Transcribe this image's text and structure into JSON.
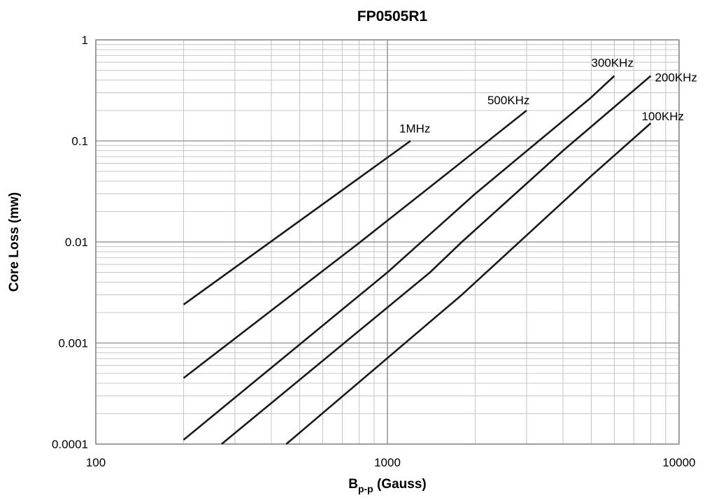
{
  "chart_data": {
    "type": "line",
    "title": "FP0505R1",
    "xlabel": {
      "main": "B",
      "sub": "p-p",
      "rest": " (Gauss)"
    },
    "ylabel": "Core Loss (mw)",
    "x_scale": "log",
    "y_scale": "log",
    "xlim": [
      100,
      10000
    ],
    "ylim": [
      0.0001,
      1
    ],
    "x_ticks": [
      {
        "value": 100,
        "label": "100"
      },
      {
        "value": 1000,
        "label": "1000"
      },
      {
        "value": 10000,
        "label": "10000"
      }
    ],
    "y_ticks": [
      {
        "value": 0.0001,
        "label": "0.0001"
      },
      {
        "value": 0.001,
        "label": "0.001"
      },
      {
        "value": 0.01,
        "label": "0.01"
      },
      {
        "value": 0.1,
        "label": "0.1"
      },
      {
        "value": 1,
        "label": "1"
      }
    ],
    "grid": true,
    "legend": "inline labels at line ends",
    "line_color": "#1a1a1a",
    "series": [
      {
        "name": "1MHz",
        "points": [
          [
            200,
            0.0024
          ],
          [
            1200,
            0.1
          ]
        ]
      },
      {
        "name": "500KHz",
        "points": [
          [
            200,
            0.00045
          ],
          [
            800,
            0.0098
          ],
          [
            1400,
            0.035
          ],
          [
            3000,
            0.2
          ]
        ]
      },
      {
        "name": "300KHz",
        "points": [
          [
            200,
            0.00011
          ],
          [
            1000,
            0.005
          ],
          [
            2000,
            0.03
          ],
          [
            5000,
            0.27
          ],
          [
            6000,
            0.44
          ]
        ]
      },
      {
        "name": "200KHz",
        "points": [
          [
            270,
            0.0001
          ],
          [
            1400,
            0.005
          ],
          [
            1800,
            0.01
          ],
          [
            4000,
            0.08
          ],
          [
            8000,
            0.44
          ]
        ]
      },
      {
        "name": "100KHz",
        "points": [
          [
            450,
            0.0001
          ],
          [
            1800,
            0.003
          ],
          [
            5000,
            0.045
          ],
          [
            8000,
            0.15
          ]
        ]
      }
    ]
  }
}
